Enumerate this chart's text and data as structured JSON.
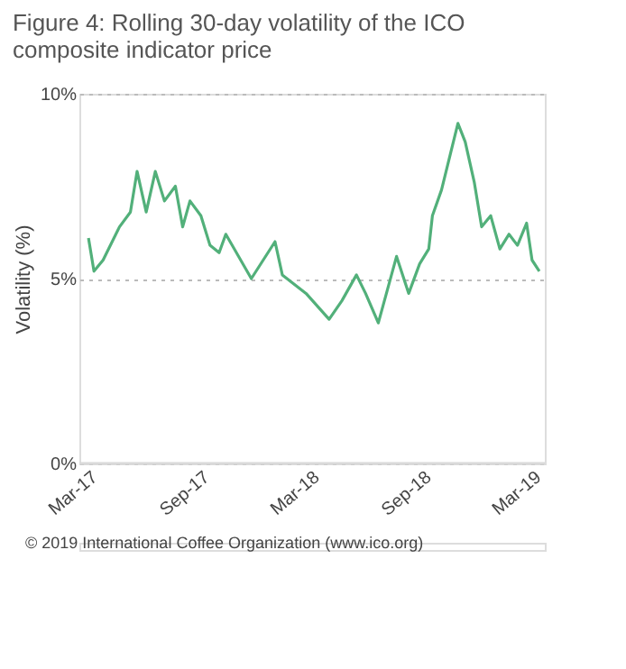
{
  "chart_data": {
    "type": "line",
    "title": "Figure 4: Rolling 30-day volatility of the ICO composite indicator price",
    "ylabel": "Volatility (%)",
    "annotations": [
      "© 2019 International Coffee Organization (www.ico.org)"
    ],
    "x": [
      "2017-03-01",
      "2017-03-10",
      "2017-03-25",
      "2017-04-21",
      "2017-05-09",
      "2017-05-20",
      "2017-06-04",
      "2017-06-19",
      "2017-07-04",
      "2017-07-22",
      "2017-08-03",
      "2017-08-15",
      "2017-09-02",
      "2017-09-17",
      "2017-10-02",
      "2017-10-13",
      "2017-11-24",
      "2018-01-02",
      "2018-01-14",
      "2018-02-22",
      "2018-04-01",
      "2018-04-22",
      "2018-05-16",
      "2018-05-31",
      "2018-06-21",
      "2018-07-21",
      "2018-08-10",
      "2018-08-28",
      "2018-09-12",
      "2018-09-18",
      "2018-10-03",
      "2018-10-18",
      "2018-10-30",
      "2018-11-11",
      "2018-11-26",
      "2018-12-08",
      "2018-12-23",
      "2019-01-07",
      "2019-01-22",
      "2019-02-05",
      "2019-02-20",
      "2019-03-01",
      "2019-03-13"
    ],
    "series": [
      {
        "color": "#52b07a",
        "values": [
          6.1,
          5.2,
          5.5,
          6.4,
          6.8,
          7.9,
          6.8,
          7.9,
          7.1,
          7.5,
          6.4,
          7.1,
          6.7,
          5.9,
          5.7,
          6.2,
          5.0,
          6.0,
          5.1,
          4.6,
          3.9,
          4.4,
          5.1,
          4.6,
          3.8,
          5.6,
          4.6,
          5.4,
          5.8,
          6.7,
          7.4,
          8.4,
          9.2,
          8.7,
          7.6,
          6.4,
          6.7,
          5.8,
          6.2,
          5.9,
          6.5,
          5.5,
          5.2
        ]
      }
    ],
    "xlim": [
      "2017-02-14",
      "2019-03-22"
    ],
    "xticks": [
      {
        "value": "2017-03-01",
        "label": "Mar-17"
      },
      {
        "value": "2017-09-01",
        "label": "Sep-17"
      },
      {
        "value": "2018-03-01",
        "label": "Mar-18"
      },
      {
        "value": "2018-09-01",
        "label": "Sep-18"
      },
      {
        "value": "2019-03-01",
        "label": "Mar-19"
      }
    ],
    "ylim": [
      0,
      10
    ],
    "yticks": [
      {
        "value": 0,
        "label": "0%"
      },
      {
        "value": 5,
        "label": "5%"
      },
      {
        "value": 10,
        "label": "10%"
      }
    ],
    "grid": "y",
    "legend": false,
    "marker": "none",
    "line_style": "solid"
  }
}
